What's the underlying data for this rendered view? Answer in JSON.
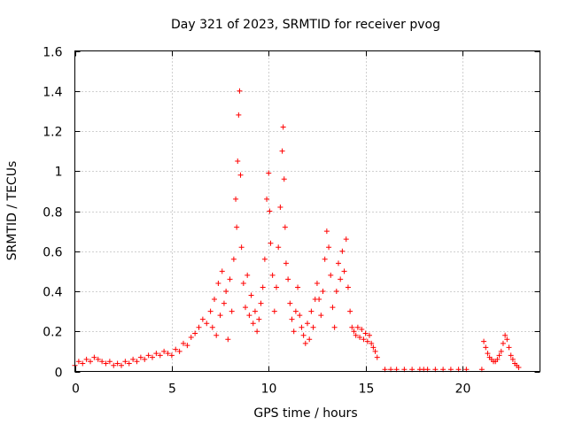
{
  "chart_data": {
    "type": "scatter",
    "title": "Day 321 of 2023, SRMTID for receiver pvog",
    "xlabel": "GPS time / hours",
    "ylabel": "SRMTID / TECUs",
    "xlim": [
      0,
      24
    ],
    "ylim": [
      0,
      1.6
    ],
    "xticks": [
      0,
      5,
      10,
      15,
      20
    ],
    "xtick_labels": [
      "0",
      "5",
      "10",
      "15",
      "20"
    ],
    "yticks": [
      0,
      0.2,
      0.4,
      0.6,
      0.8,
      1,
      1.2,
      1.4,
      1.6
    ],
    "ytick_labels": [
      "0",
      "0.2",
      "0.4",
      "0.6",
      "0.8",
      "1",
      "1.2",
      "1.4",
      "1.6"
    ],
    "grid": true,
    "marker": "plus",
    "marker_color": "#ff0000",
    "series": [
      {
        "name": "SRMTID",
        "x": [
          0.0,
          0.2,
          0.4,
          0.6,
          0.8,
          1.0,
          1.2,
          1.4,
          1.6,
          1.8,
          2.0,
          2.2,
          2.4,
          2.6,
          2.8,
          3.0,
          3.2,
          3.4,
          3.6,
          3.8,
          4.0,
          4.2,
          4.4,
          4.6,
          4.8,
          5.0,
          5.2,
          5.4,
          5.6,
          5.8,
          6.0,
          6.2,
          6.4,
          6.6,
          6.8,
          7.0,
          7.1,
          7.2,
          7.3,
          7.4,
          7.5,
          7.6,
          7.7,
          7.8,
          7.9,
          8.0,
          8.1,
          8.2,
          8.3,
          8.35,
          8.4,
          8.45,
          8.5,
          8.55,
          8.6,
          8.7,
          8.8,
          8.9,
          9.0,
          9.1,
          9.2,
          9.3,
          9.4,
          9.5,
          9.6,
          9.7,
          9.8,
          9.9,
          10.0,
          10.05,
          10.1,
          10.2,
          10.3,
          10.4,
          10.5,
          10.6,
          10.7,
          10.75,
          10.8,
          10.85,
          10.9,
          11.0,
          11.1,
          11.2,
          11.3,
          11.4,
          11.5,
          11.6,
          11.7,
          11.8,
          11.9,
          12.0,
          12.1,
          12.2,
          12.3,
          12.4,
          12.5,
          12.6,
          12.7,
          12.8,
          12.9,
          13.0,
          13.1,
          13.2,
          13.3,
          13.4,
          13.5,
          13.6,
          13.7,
          13.8,
          13.9,
          14.0,
          14.1,
          14.2,
          14.3,
          14.4,
          14.5,
          14.6,
          14.7,
          14.8,
          14.9,
          15.0,
          15.1,
          15.2,
          15.3,
          15.4,
          15.5,
          15.6,
          16.0,
          16.3,
          16.6,
          17.0,
          17.4,
          17.8,
          18.0,
          18.2,
          18.6,
          19.0,
          19.4,
          19.8,
          20.2,
          21.0,
          21.1,
          21.2,
          21.3,
          21.4,
          21.5,
          21.6,
          21.7,
          21.8,
          21.9,
          22.0,
          22.1,
          22.2,
          22.3,
          22.4,
          22.5,
          22.6,
          22.7,
          22.8,
          22.9
        ],
        "y": [
          0.03,
          0.05,
          0.04,
          0.06,
          0.05,
          0.07,
          0.06,
          0.05,
          0.04,
          0.05,
          0.03,
          0.04,
          0.03,
          0.05,
          0.04,
          0.06,
          0.05,
          0.07,
          0.06,
          0.08,
          0.07,
          0.09,
          0.08,
          0.1,
          0.09,
          0.08,
          0.11,
          0.1,
          0.14,
          0.13,
          0.17,
          0.19,
          0.22,
          0.26,
          0.24,
          0.3,
          0.22,
          0.36,
          0.18,
          0.44,
          0.28,
          0.5,
          0.34,
          0.4,
          0.16,
          0.46,
          0.3,
          0.56,
          0.86,
          0.72,
          1.05,
          1.28,
          1.4,
          0.98,
          0.62,
          0.44,
          0.32,
          0.48,
          0.28,
          0.38,
          0.24,
          0.3,
          0.2,
          0.26,
          0.34,
          0.42,
          0.56,
          0.86,
          0.99,
          0.8,
          0.64,
          0.48,
          0.3,
          0.42,
          0.62,
          0.82,
          1.1,
          1.22,
          0.96,
          0.72,
          0.54,
          0.46,
          0.34,
          0.26,
          0.2,
          0.3,
          0.42,
          0.28,
          0.22,
          0.18,
          0.14,
          0.24,
          0.16,
          0.3,
          0.22,
          0.36,
          0.44,
          0.36,
          0.28,
          0.4,
          0.56,
          0.7,
          0.62,
          0.48,
          0.32,
          0.22,
          0.4,
          0.54,
          0.46,
          0.6,
          0.5,
          0.66,
          0.42,
          0.3,
          0.22,
          0.2,
          0.18,
          0.22,
          0.17,
          0.21,
          0.16,
          0.19,
          0.15,
          0.18,
          0.14,
          0.12,
          0.1,
          0.07,
          0.01,
          0.01,
          0.01,
          0.01,
          0.01,
          0.01,
          0.01,
          0.01,
          0.01,
          0.01,
          0.01,
          0.01,
          0.01,
          0.01,
          0.15,
          0.12,
          0.09,
          0.07,
          0.06,
          0.05,
          0.05,
          0.06,
          0.08,
          0.1,
          0.14,
          0.18,
          0.16,
          0.12,
          0.08,
          0.06,
          0.04,
          0.03,
          0.02
        ]
      }
    ]
  }
}
